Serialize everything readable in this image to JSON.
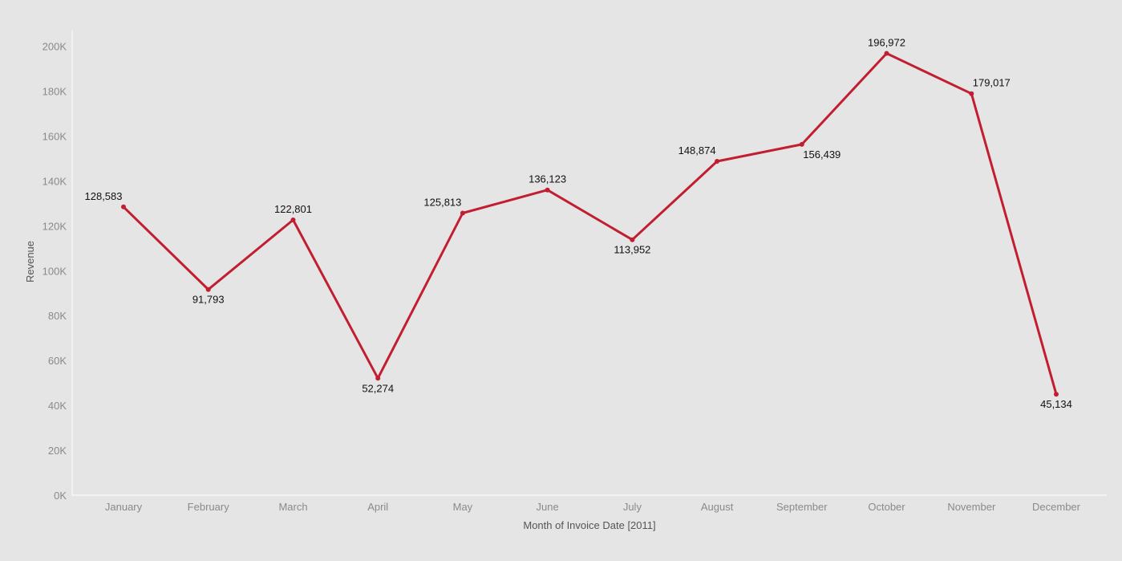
{
  "chart_data": {
    "type": "line",
    "title": "",
    "xlabel": "Month of Invoice Date [2011]",
    "ylabel": "Revenue",
    "categories": [
      "January",
      "February",
      "March",
      "April",
      "May",
      "June",
      "July",
      "August",
      "September",
      "October",
      "November",
      "December"
    ],
    "values": [
      128583,
      91793,
      122801,
      52274,
      125813,
      136123,
      113952,
      148874,
      156439,
      196972,
      179017,
      45134
    ],
    "data_labels": [
      "128,583",
      "91,793",
      "122,801",
      "52,274",
      "125,813",
      "136,123",
      "113,952",
      "148,874",
      "156,439",
      "196,972",
      "179,017",
      "45,134"
    ],
    "ylim": [
      0,
      200000
    ],
    "yticks": [
      0,
      20000,
      40000,
      60000,
      80000,
      100000,
      120000,
      140000,
      160000,
      180000,
      200000
    ],
    "ytick_labels": [
      "0K",
      "20K",
      "40K",
      "60K",
      "80K",
      "100K",
      "120K",
      "140K",
      "160K",
      "180K",
      "200K"
    ],
    "grid": false,
    "legend": "none",
    "colors": {
      "line": "#c11f31",
      "background": "#e6e5e5",
      "axis": "#ffffff"
    }
  }
}
